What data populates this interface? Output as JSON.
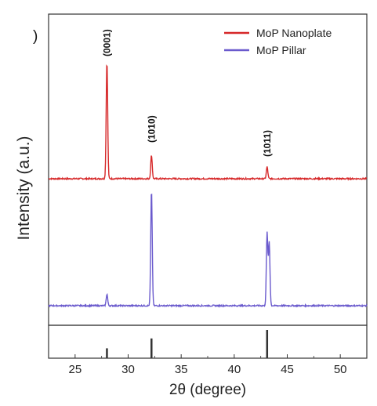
{
  "chart_data": {
    "type": "line",
    "panel_letter": ")",
    "xlabel": "2θ (degree)",
    "ylabel": "Intensity (a.u.)",
    "xlim": [
      22.5,
      52.5
    ],
    "xticks": [
      25,
      30,
      35,
      40,
      45,
      50
    ],
    "y_ticks_shown": false,
    "legend_position": "top-right",
    "series": [
      {
        "name": "MoP Nanoplate",
        "color": "#d62728",
        "baseline": 0,
        "peaks": [
          {
            "x": 28.0,
            "height": 100
          },
          {
            "x": 32.2,
            "height": 20
          },
          {
            "x": 43.1,
            "height": 10
          }
        ]
      },
      {
        "name": "MoP Pillar",
        "color": "#6a5acd",
        "baseline": 0,
        "peaks": [
          {
            "x": 28.0,
            "height": 10
          },
          {
            "x": 32.2,
            "height": 100
          },
          {
            "x": 43.1,
            "height": 63
          },
          {
            "x": 43.3,
            "height": 55
          }
        ]
      }
    ],
    "peak_annotations": [
      {
        "x": 28.0,
        "label": "(0001)"
      },
      {
        "x": 32.2,
        "label": "(1010)"
      },
      {
        "x": 43.1,
        "label": "(1011)"
      }
    ],
    "reference_sticks": [
      {
        "x": 28.0,
        "height": 0.35
      },
      {
        "x": 32.2,
        "height": 0.7
      },
      {
        "x": 43.1,
        "height": 1.0
      }
    ]
  }
}
